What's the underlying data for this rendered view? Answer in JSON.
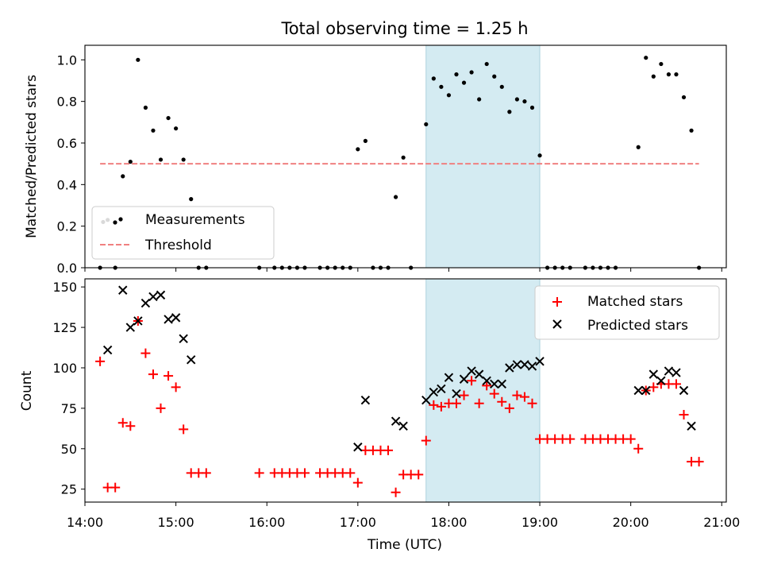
{
  "chart_data": [
    {
      "type": "scatter",
      "title": "Total observing time = 1.25 h",
      "xlabel": "",
      "ylabel": "Matched/Predicted stars",
      "xlim": [
        "14:00",
        "21:03"
      ],
      "ylim": [
        0,
        1.07
      ],
      "yticks": [
        "0.0",
        "0.2",
        "0.4",
        "0.6",
        "0.8",
        "1.0"
      ],
      "highlight_span": [
        "17:45",
        "19:00"
      ],
      "legend_position": "lower-left",
      "colors": {
        "measurements": "#000000",
        "threshold": "#f08080",
        "highlight": "#add8e6"
      },
      "series": [
        {
          "name": "Measurements",
          "marker": "dot",
          "points": [
            [
              "14:10",
              0.0
            ],
            [
              "14:12",
              0.22
            ],
            [
              "14:15",
              0.23
            ],
            [
              "14:20",
              0.0
            ],
            [
              "14:25",
              0.44
            ],
            [
              "14:30",
              0.51
            ],
            [
              "14:35",
              1.0
            ],
            [
              "14:40",
              0.77
            ],
            [
              "14:45",
              0.66
            ],
            [
              "14:50",
              0.52
            ],
            [
              "14:55",
              0.72
            ],
            [
              "15:00",
              0.67
            ],
            [
              "15:05",
              0.52
            ],
            [
              "15:10",
              0.33
            ],
            [
              "15:15",
              0.0
            ],
            [
              "15:20",
              0.0
            ],
            [
              "15:55",
              0.0
            ],
            [
              "16:05",
              0.0
            ],
            [
              "16:10",
              0.0
            ],
            [
              "16:15",
              0.0
            ],
            [
              "16:20",
              0.0
            ],
            [
              "16:25",
              0.0
            ],
            [
              "16:35",
              0.0
            ],
            [
              "16:40",
              0.0
            ],
            [
              "16:45",
              0.0
            ],
            [
              "16:50",
              0.0
            ],
            [
              "16:55",
              0.0
            ],
            [
              "17:00",
              0.57
            ],
            [
              "17:05",
              0.61
            ],
            [
              "17:10",
              0.0
            ],
            [
              "17:15",
              0.0
            ],
            [
              "17:20",
              0.0
            ],
            [
              "17:25",
              0.34
            ],
            [
              "17:30",
              0.53
            ],
            [
              "17:35",
              0.0
            ],
            [
              "17:45",
              0.69
            ],
            [
              "17:50",
              0.91
            ],
            [
              "17:55",
              0.87
            ],
            [
              "18:00",
              0.83
            ],
            [
              "18:05",
              0.93
            ],
            [
              "18:10",
              0.89
            ],
            [
              "18:15",
              0.94
            ],
            [
              "18:20",
              0.81
            ],
            [
              "18:25",
              0.98
            ],
            [
              "18:30",
              0.92
            ],
            [
              "18:35",
              0.87
            ],
            [
              "18:40",
              0.75
            ],
            [
              "18:45",
              0.81
            ],
            [
              "18:50",
              0.8
            ],
            [
              "18:55",
              0.77
            ],
            [
              "19:00",
              0.54
            ],
            [
              "19:05",
              0.0
            ],
            [
              "19:10",
              0.0
            ],
            [
              "19:15",
              0.0
            ],
            [
              "19:20",
              0.0
            ],
            [
              "19:30",
              0.0
            ],
            [
              "19:35",
              0.0
            ],
            [
              "19:40",
              0.0
            ],
            [
              "19:45",
              0.0
            ],
            [
              "19:50",
              0.0
            ],
            [
              "20:05",
              0.58
            ],
            [
              "20:10",
              1.01
            ],
            [
              "20:15",
              0.92
            ],
            [
              "20:20",
              0.98
            ],
            [
              "20:25",
              0.93
            ],
            [
              "20:30",
              0.93
            ],
            [
              "20:35",
              0.82
            ],
            [
              "20:40",
              0.66
            ],
            [
              "20:45",
              0.0
            ]
          ]
        },
        {
          "name": "Threshold",
          "marker": "dashed-line",
          "points": [
            [
              "14:10",
              0.5
            ],
            [
              "20:45",
              0.5
            ]
          ]
        }
      ]
    },
    {
      "type": "scatter",
      "title": "",
      "xlabel": "Time (UTC)",
      "ylabel": "Count",
      "xlim": [
        "14:00",
        "21:03"
      ],
      "ylim": [
        17,
        155
      ],
      "xticks": [
        "14:00",
        "15:00",
        "16:00",
        "17:00",
        "18:00",
        "19:00",
        "20:00",
        "21:00"
      ],
      "yticks": [
        "25",
        "50",
        "75",
        "100",
        "125",
        "150"
      ],
      "highlight_span": [
        "17:45",
        "19:00"
      ],
      "legend_position": "upper-right",
      "colors": {
        "matched": "#ff0000",
        "predicted": "#000000",
        "highlight": "#add8e6"
      },
      "series": [
        {
          "name": "Matched stars",
          "marker": "plus",
          "points": [
            [
              "14:10",
              104
            ],
            [
              "14:15",
              26
            ],
            [
              "14:20",
              26
            ],
            [
              "14:25",
              66
            ],
            [
              "14:30",
              64
            ],
            [
              "14:35",
              129
            ],
            [
              "14:40",
              109
            ],
            [
              "14:45",
              96
            ],
            [
              "14:50",
              75
            ],
            [
              "14:55",
              95
            ],
            [
              "15:00",
              88
            ],
            [
              "15:05",
              62
            ],
            [
              "15:10",
              35
            ],
            [
              "15:15",
              35
            ],
            [
              "15:20",
              35
            ],
            [
              "15:55",
              35
            ],
            [
              "16:05",
              35
            ],
            [
              "16:10",
              35
            ],
            [
              "16:15",
              35
            ],
            [
              "16:20",
              35
            ],
            [
              "16:25",
              35
            ],
            [
              "16:35",
              35
            ],
            [
              "16:40",
              35
            ],
            [
              "16:45",
              35
            ],
            [
              "16:50",
              35
            ],
            [
              "16:55",
              35
            ],
            [
              "17:00",
              29
            ],
            [
              "17:05",
              49
            ],
            [
              "17:10",
              49
            ],
            [
              "17:15",
              49
            ],
            [
              "17:20",
              49
            ],
            [
              "17:25",
              23
            ],
            [
              "17:30",
              34
            ],
            [
              "17:35",
              34
            ],
            [
              "17:40",
              34
            ],
            [
              "17:45",
              55
            ],
            [
              "17:50",
              77
            ],
            [
              "17:55",
              76
            ],
            [
              "18:00",
              78
            ],
            [
              "18:05",
              78
            ],
            [
              "18:10",
              83
            ],
            [
              "18:15",
              92
            ],
            [
              "18:20",
              78
            ],
            [
              "18:25",
              89
            ],
            [
              "18:30",
              84
            ],
            [
              "18:35",
              79
            ],
            [
              "18:40",
              75
            ],
            [
              "18:45",
              83
            ],
            [
              "18:50",
              82
            ],
            [
              "18:55",
              78
            ],
            [
              "19:00",
              56
            ],
            [
              "19:05",
              56
            ],
            [
              "19:10",
              56
            ],
            [
              "19:15",
              56
            ],
            [
              "19:20",
              56
            ],
            [
              "19:30",
              56
            ],
            [
              "19:35",
              56
            ],
            [
              "19:40",
              56
            ],
            [
              "19:45",
              56
            ],
            [
              "19:50",
              56
            ],
            [
              "19:55",
              56
            ],
            [
              "20:00",
              56
            ],
            [
              "20:05",
              50
            ],
            [
              "20:10",
              86
            ],
            [
              "20:15",
              88
            ],
            [
              "20:20",
              90
            ],
            [
              "20:25",
              90
            ],
            [
              "20:30",
              90
            ],
            [
              "20:35",
              71
            ],
            [
              "20:40",
              42
            ],
            [
              "20:45",
              42
            ]
          ]
        },
        {
          "name": "Predicted stars",
          "marker": "x",
          "points": [
            [
              "14:15",
              111
            ],
            [
              "14:25",
              148
            ],
            [
              "14:30",
              125
            ],
            [
              "14:35",
              129
            ],
            [
              "14:40",
              140
            ],
            [
              "14:45",
              144
            ],
            [
              "14:50",
              145
            ],
            [
              "14:55",
              130
            ],
            [
              "15:00",
              131
            ],
            [
              "15:05",
              118
            ],
            [
              "15:10",
              105
            ],
            [
              "17:00",
              51
            ],
            [
              "17:05",
              80
            ],
            [
              "17:25",
              67
            ],
            [
              "17:30",
              64
            ],
            [
              "17:45",
              80
            ],
            [
              "17:50",
              85
            ],
            [
              "17:55",
              87
            ],
            [
              "18:00",
              94
            ],
            [
              "18:05",
              84
            ],
            [
              "18:10",
              93
            ],
            [
              "18:15",
              98
            ],
            [
              "18:20",
              96
            ],
            [
              "18:25",
              92
            ],
            [
              "18:30",
              90
            ],
            [
              "18:35",
              90
            ],
            [
              "18:40",
              100
            ],
            [
              "18:45",
              102
            ],
            [
              "18:50",
              102
            ],
            [
              "18:55",
              101
            ],
            [
              "19:00",
              104
            ],
            [
              "20:05",
              86
            ],
            [
              "20:10",
              86
            ],
            [
              "20:15",
              96
            ],
            [
              "20:20",
              92
            ],
            [
              "20:25",
              98
            ],
            [
              "20:30",
              97
            ],
            [
              "20:35",
              86
            ],
            [
              "20:40",
              64
            ]
          ]
        }
      ]
    }
  ]
}
